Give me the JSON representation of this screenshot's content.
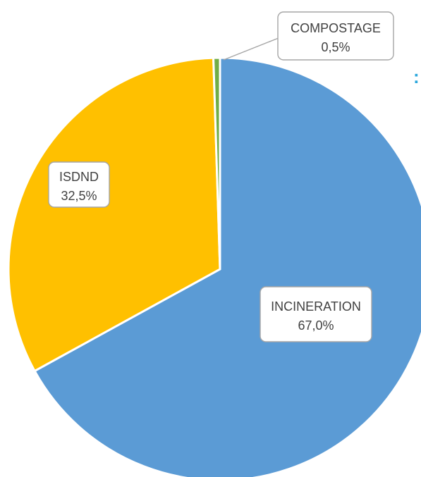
{
  "chart_data": {
    "type": "pie",
    "categories": [
      "INCINERATION",
      "ISDND",
      "COMPOSTAGE"
    ],
    "values": [
      67.0,
      32.5,
      0.5
    ],
    "value_labels": [
      "67,0%",
      "32,5%",
      "0,5%"
    ],
    "colors": [
      "#5b9bd5",
      "#ffc000",
      "#70ad47"
    ],
    "title": "",
    "start_angle": "top, clockwise",
    "legend": "none"
  },
  "edge_text": ":",
  "edge_text_color": "#2aa7dc"
}
